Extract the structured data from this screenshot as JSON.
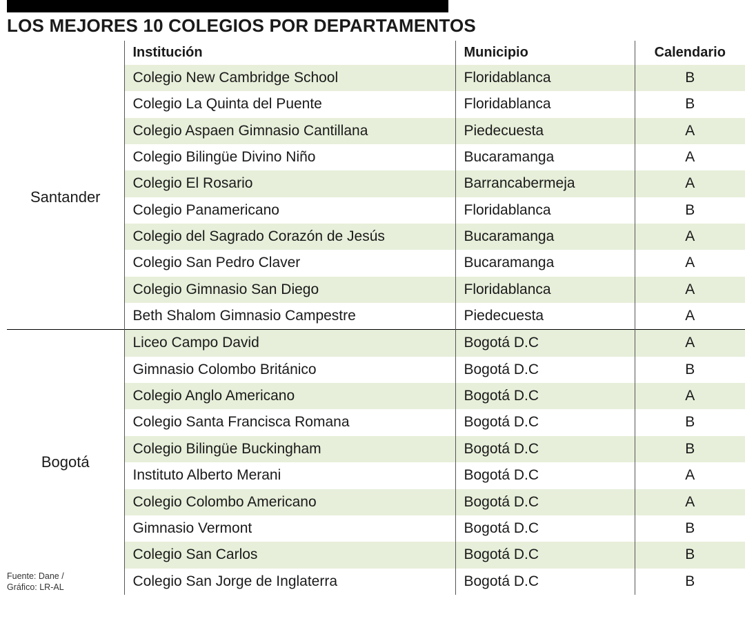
{
  "title": "LOS MEJORES 10 COLEGIOS POR DEPARTAMENTOS",
  "headers": {
    "institucion": "Institución",
    "municipio": "Municipio",
    "calendario": "Calendario"
  },
  "columns": {
    "dept_width": 170,
    "inst_width": 480,
    "muni_width": 260,
    "cal_width": 160
  },
  "colors": {
    "row_odd": "#e7efda",
    "row_even": "#ffffff",
    "text": "#1a1a1a",
    "rule": "#555555",
    "topbar": "#000000"
  },
  "typography": {
    "title_fontsize": 26,
    "header_fontsize": 20,
    "cell_fontsize": 21,
    "dept_fontsize": 22,
    "footer_fontsize": 12.5
  },
  "groups": [
    {
      "dept": "Santander",
      "rows": [
        {
          "inst": "Colegio New Cambridge School",
          "muni": "Floridablanca",
          "cal": "B"
        },
        {
          "inst": "Colegio La Quinta del Puente",
          "muni": "Floridablanca",
          "cal": "B"
        },
        {
          "inst": "Colegio Aspaen Gimnasio Cantillana",
          "muni": "Piedecuesta",
          "cal": "A"
        },
        {
          "inst": "Colegio Bilingüe Divino Niño",
          "muni": "Bucaramanga",
          "cal": "A"
        },
        {
          "inst": "Colegio El Rosario",
          "muni": "Barrancabermeja",
          "cal": "A"
        },
        {
          "inst": "Colegio Panamericano",
          "muni": "Floridablanca",
          "cal": "B"
        },
        {
          "inst": "Colegio del Sagrado Corazón de Jesús",
          "muni": "Bucaramanga",
          "cal": "A"
        },
        {
          "inst": "Colegio San Pedro Claver",
          "muni": "Bucaramanga",
          "cal": "A"
        },
        {
          "inst": "Colegio Gimnasio San Diego",
          "muni": "Floridablanca",
          "cal": "A"
        },
        {
          "inst": "Beth Shalom Gimnasio Campestre",
          "muni": "Piedecuesta",
          "cal": "A"
        }
      ]
    },
    {
      "dept": "Bogotá",
      "rows": [
        {
          "inst": "Liceo Campo David",
          "muni": "Bogotá D.C",
          "cal": "A"
        },
        {
          "inst": "Gimnasio Colombo Británico",
          "muni": "Bogotá D.C",
          "cal": "B"
        },
        {
          "inst": "Colegio Anglo Americano",
          "muni": "Bogotá D.C",
          "cal": "A"
        },
        {
          "inst": "Colegio Santa Francisca Romana",
          "muni": "Bogotá D.C",
          "cal": "B"
        },
        {
          "inst": "Colegio Bilingüe Buckingham",
          "muni": "Bogotá D.C",
          "cal": "B"
        },
        {
          "inst": "Instituto Alberto Merani",
          "muni": "Bogotá D.C",
          "cal": "A"
        },
        {
          "inst": "Colegio Colombo Americano",
          "muni": "Bogotá D.C",
          "cal": "A"
        },
        {
          "inst": "Gimnasio Vermont",
          "muni": "Bogotá D.C",
          "cal": "B"
        },
        {
          "inst": "Colegio San Carlos",
          "muni": "Bogotá D.C",
          "cal": "B"
        },
        {
          "inst": "Colegio San Jorge de Inglaterra",
          "muni": "Bogotá D.C",
          "cal": "B"
        }
      ]
    }
  ],
  "footer": {
    "line1": "Fuente: Dane /",
    "line2": "Gráfico: LR-AL"
  }
}
